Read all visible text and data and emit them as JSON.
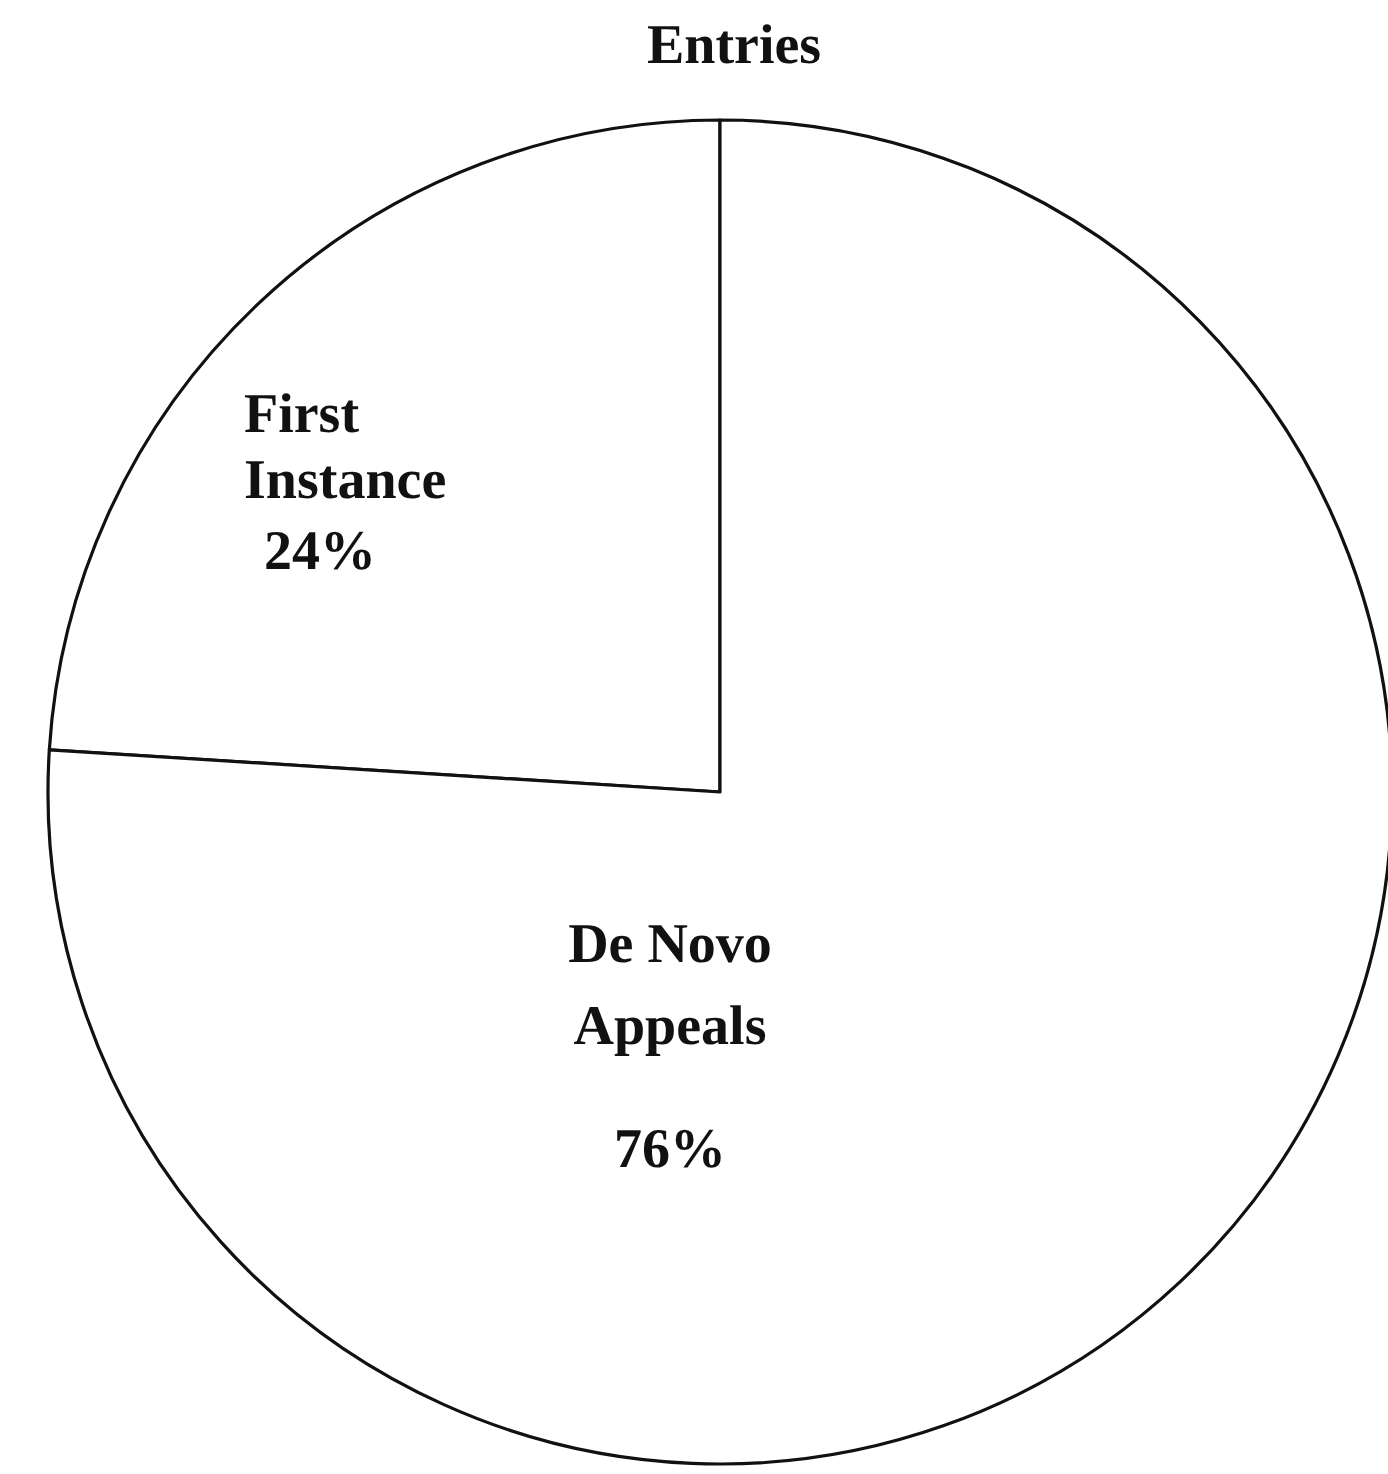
{
  "chart_data": {
    "type": "pie",
    "title": "Entries",
    "categories": [
      "First Instance",
      "De Novo Appeals"
    ],
    "values": [
      24,
      76
    ],
    "colors": [
      "#ffffff",
      "#ffffff"
    ],
    "value_labels": [
      "24%",
      "76%"
    ]
  }
}
